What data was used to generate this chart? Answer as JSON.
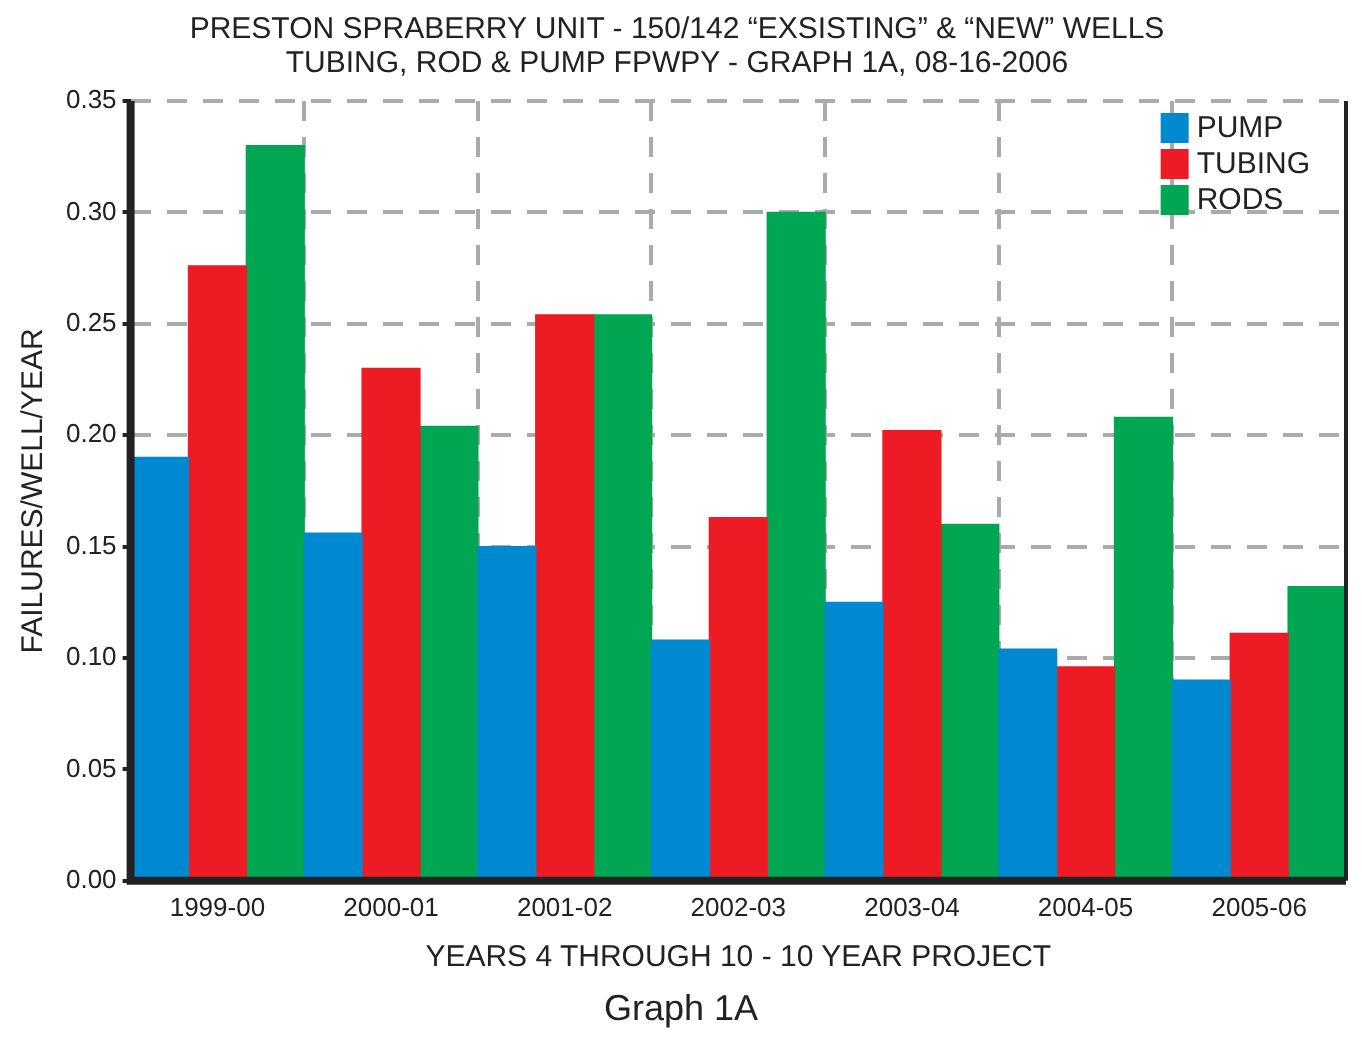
{
  "chart_data": {
    "type": "bar",
    "title": "PRESTON SPRABERRY UNIT - 150/142 “EXSISTING” & “NEW” WELLS\nTUBING, ROD & PUMP FPWPY - GRAPH 1A, 08-16-2006",
    "xlabel": "YEARS 4 THROUGH 10 - 10 YEAR PROJECT",
    "ylabel": "FAILURES/WELL/YEAR",
    "annotations": [
      "Graph 1A"
    ],
    "categories": [
      "1999-00",
      "2000-01",
      "2001-02",
      "2002-03",
      "2003-04",
      "2004-05",
      "2005-06"
    ],
    "series": [
      {
        "name": "PUMP",
        "color": "#0088d1",
        "values": [
          0.19,
          0.156,
          0.15,
          0.108,
          0.125,
          0.104,
          0.09
        ]
      },
      {
        "name": "TUBING",
        "color": "#ed1c24",
        "values": [
          0.276,
          0.23,
          0.254,
          0.163,
          0.202,
          0.096,
          0.111
        ]
      },
      {
        "name": "RODS",
        "color": "#00a651",
        "values": [
          0.33,
          0.204,
          0.254,
          0.3,
          0.16,
          0.208,
          0.132
        ]
      }
    ],
    "ylim": [
      0,
      0.35
    ],
    "yticks": [
      {
        "value": 0,
        "label": "0.00"
      },
      {
        "value": 0.05,
        "label": "0.05"
      },
      {
        "value": 0.1,
        "label": "0.10"
      },
      {
        "value": 0.15,
        "label": "0.15"
      },
      {
        "value": 0.2,
        "label": "0.20"
      },
      {
        "value": 0.25,
        "label": "0.25"
      },
      {
        "value": 0.3,
        "label": "0.30"
      },
      {
        "value": 0.35,
        "label": "0.35"
      }
    ],
    "grid": true,
    "legend": "top right"
  }
}
